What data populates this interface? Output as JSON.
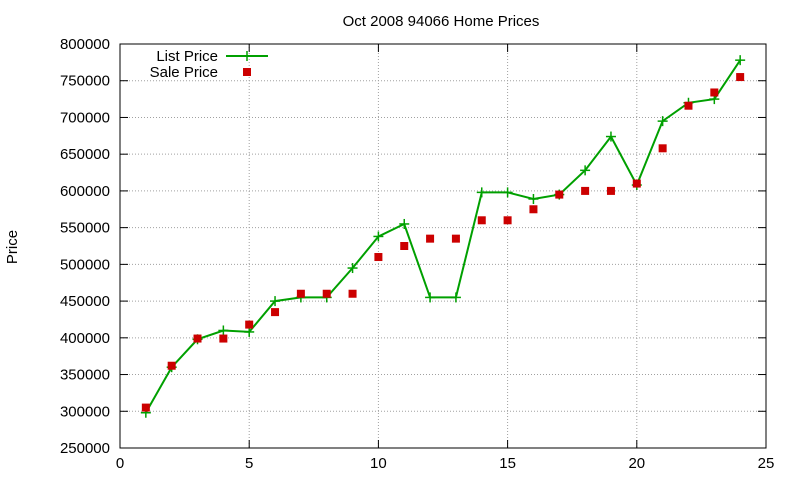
{
  "chart_data": {
    "type": "line",
    "title": "Oct 2008 94066 Home Prices",
    "xlabel": "",
    "ylabel": "Price",
    "xlim": [
      0,
      25
    ],
    "ylim": [
      250000,
      800000
    ],
    "xticks": [
      "0",
      "5",
      "10",
      "15",
      "20",
      "25"
    ],
    "yticks": [
      "250000",
      "300000",
      "350000",
      "400000",
      "450000",
      "500000",
      "550000",
      "600000",
      "650000",
      "700000",
      "750000",
      "800000"
    ],
    "grid": true,
    "legend_position": "top-left",
    "series": [
      {
        "name": "List Price",
        "style": "line-cross",
        "color": "#00a000",
        "x": [
          1,
          2,
          3,
          4,
          5,
          6,
          7,
          8,
          9,
          10,
          11,
          12,
          13,
          14,
          15,
          16,
          17,
          18,
          19,
          20,
          21,
          22,
          23,
          24
        ],
        "values": [
          298000,
          360000,
          398000,
          410000,
          408000,
          450000,
          455000,
          455000,
          495000,
          538000,
          555000,
          455000,
          455000,
          598000,
          598000,
          589000,
          595000,
          628000,
          674000,
          608000,
          695000,
          720000,
          725000,
          778000
        ]
      },
      {
        "name": "Sale Price",
        "style": "square",
        "color": "#cc0000",
        "x": [
          1,
          2,
          3,
          4,
          5,
          6,
          7,
          8,
          9,
          10,
          11,
          12,
          13,
          14,
          15,
          16,
          17,
          18,
          19,
          20,
          21,
          22,
          23,
          24
        ],
        "values": [
          305000,
          362000,
          399000,
          399000,
          418000,
          435000,
          460000,
          460000,
          460000,
          510000,
          525000,
          535000,
          535000,
          560000,
          560000,
          575000,
          595000,
          600000,
          600000,
          610000,
          658000,
          716000,
          734000,
          755000
        ]
      }
    ]
  }
}
